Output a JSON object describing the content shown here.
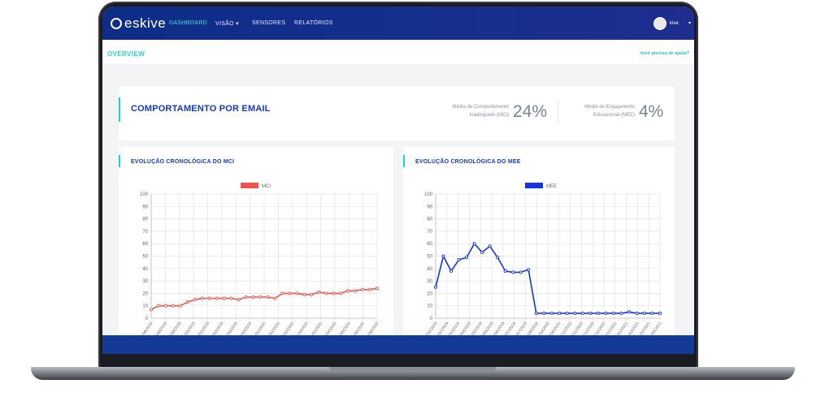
{
  "nav": {
    "logo": "eskive",
    "items": [
      {
        "label": "DASHBOARD",
        "active": true
      },
      {
        "label": "VISÃO ▾",
        "active": false
      },
      {
        "label": "SENSORES",
        "active": false
      },
      {
        "label": "RELATÓRIOS",
        "active": false
      }
    ],
    "user": "kive"
  },
  "subbar": {
    "title": "OVERVIEW",
    "help": "Você precisa de ajuda?"
  },
  "email_card": {
    "title": "COMPORTAMENTO POR EMAIL",
    "mci_label_1": "Média de Comportamento",
    "mci_label_2": "Inadequado (MCI)",
    "mci_value": "24%",
    "mee_label_1": "Média de Engajamento",
    "mee_label_2": "Educacional (MEE)",
    "mee_value": "4%"
  },
  "colors": {
    "mci": "#f0534b",
    "mee": "#1336e0"
  },
  "chart_data": [
    {
      "type": "line",
      "title": "EVOLUÇÃO CRONOLÓGICA DO MCI",
      "legend": "MCI",
      "ylim": [
        0,
        100
      ],
      "yticks": [
        0,
        10,
        20,
        30,
        40,
        50,
        60,
        70,
        80,
        90,
        100
      ],
      "x_tick_labels": [
        "25/08/2018",
        "26/08/2018",
        "30/09/2018",
        "01/03/2019",
        "30/03/2019",
        "21/03/2019",
        "05/03/2019",
        "31/03/2019",
        "01/01/2020",
        "15/01/2020",
        "16/02/2020",
        "11/03/2020",
        "31/03/2020",
        "15/04/2020",
        "21/05/2020",
        "01/06/2020",
        "11/08/2020"
      ],
      "values": [
        7,
        10,
        10,
        10,
        10,
        13,
        15,
        16,
        16,
        16,
        16,
        16,
        15,
        17,
        17,
        17,
        17,
        16,
        20,
        20,
        20,
        19,
        19,
        21,
        20,
        20,
        20,
        22,
        22,
        23,
        23,
        24
      ]
    },
    {
      "type": "line",
      "title": "EVOLUÇÃO CRONOLÓGICA DO MEE",
      "legend": "MEE",
      "ylim": [
        0,
        100
      ],
      "yticks": [
        0,
        10,
        20,
        30,
        40,
        50,
        60,
        70,
        80,
        90,
        100
      ],
      "x_tick_labels": [
        "10/02/2019",
        "14/02/2019",
        "17/03/2019",
        "06/04/2019",
        "14/05/2019",
        "25/05/2019",
        "15/06/2019",
        "10/07/2019",
        "31/07/2019",
        "21/08/2019",
        "11/03/2020",
        "17/06/2020",
        "05/11/2020",
        "17/11/2020",
        "03/12/2020",
        "17/12/2020",
        "05/01/2021",
        "21/01/2021",
        "01/02/2021",
        "11/02/2021",
        "11/05/2021"
      ],
      "values": [
        25,
        50,
        38,
        47,
        49,
        60,
        53,
        58,
        49,
        38,
        37,
        37,
        39,
        4,
        4,
        4,
        4,
        4,
        4,
        4,
        4,
        4,
        4,
        4,
        4,
        5,
        4,
        4,
        4,
        4
      ]
    }
  ]
}
